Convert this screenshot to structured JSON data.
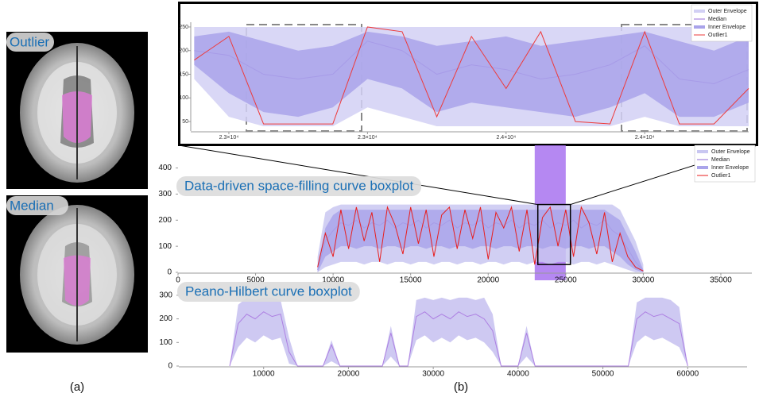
{
  "left_panel": {
    "images": [
      {
        "label": "Outlier"
      },
      {
        "label": "Median"
      }
    ],
    "caption": "(a)"
  },
  "right_caption": "(b)",
  "chart_data": [
    {
      "type": "line",
      "legend": "upper right",
      "x": [
        22800,
        22900,
        23000,
        23100,
        23200,
        23300,
        23400,
        23500,
        23600,
        23700,
        23800,
        23900,
        24000,
        24100,
        24200,
        24300,
        24400
      ],
      "xlim": [
        22790,
        24400
      ],
      "xticks": [
        {
          "value": 22900,
          "label": "2.3×10⁴"
        },
        {
          "value": 23300,
          "label": "2.3×10⁴"
        },
        {
          "value": 23700,
          "label": "2.4×10⁴"
        },
        {
          "value": 24100,
          "label": "2.4×10⁴"
        }
      ],
      "ylim": [
        30,
        260
      ],
      "yticks": [
        50,
        100,
        150,
        200,
        250
      ],
      "series": [
        {
          "name": "Outer Envelope",
          "color": "#d2d0f4",
          "values": [
            250,
            250,
            250,
            250,
            250,
            250,
            250,
            250,
            250,
            250,
            250,
            250,
            250,
            250,
            250,
            250,
            250
          ],
          "low": [
            140,
            60,
            40,
            40,
            40,
            80,
            60,
            40,
            40,
            40,
            40,
            40,
            40,
            60,
            40,
            40,
            40
          ]
        },
        {
          "name": "Median",
          "color": "#9a6cd8",
          "values": [
            200,
            190,
            150,
            140,
            150,
            220,
            200,
            150,
            170,
            160,
            140,
            150,
            170,
            210,
            140,
            130,
            160
          ]
        },
        {
          "name": "Inner Envelope",
          "color": "#a9a3ea",
          "values": [
            230,
            240,
            220,
            200,
            210,
            240,
            230,
            210,
            220,
            230,
            210,
            220,
            230,
            240,
            220,
            200,
            230
          ],
          "low": [
            170,
            110,
            70,
            60,
            80,
            140,
            120,
            70,
            90,
            80,
            70,
            60,
            80,
            110,
            60,
            60,
            90
          ]
        },
        {
          "name": "Outlier1",
          "color": "#ee3a3a",
          "values": [
            180,
            230,
            45,
            45,
            45,
            250,
            240,
            60,
            230,
            120,
            240,
            50,
            45,
            240,
            45,
            45,
            120
          ]
        }
      ]
    },
    {
      "type": "line",
      "legend": "upper right",
      "title": "Data-driven space-filling curve boxplot",
      "highlight_x": [
        23000,
        25000
      ],
      "zoom_box": {
        "x": [
          23200,
          25300
        ],
        "y": [
          30,
          260
        ]
      },
      "x": [
        9000,
        9500,
        10000,
        10500,
        11000,
        11500,
        12000,
        12500,
        13000,
        13500,
        14000,
        14500,
        15000,
        15500,
        16000,
        16500,
        17000,
        17500,
        18000,
        18500,
        19000,
        19500,
        20000,
        20500,
        21000,
        21500,
        22000,
        22500,
        23000,
        23500,
        24000,
        24500,
        25000,
        25500,
        26000,
        26500,
        27000,
        27500,
        28000,
        28500,
        29000,
        29500,
        30000
      ],
      "xlim": [
        0,
        37000
      ],
      "xticks": [
        0,
        5000,
        10000,
        15000,
        20000,
        25000,
        30000,
        35000
      ],
      "ylim": [
        0,
        420
      ],
      "yticks": [
        0,
        100,
        200,
        300,
        400
      ],
      "series": [
        {
          "name": "Outer Envelope",
          "color": "#c9c7f1",
          "values": [
            60,
            230,
            250,
            260,
            260,
            260,
            260,
            260,
            260,
            260,
            260,
            260,
            260,
            260,
            260,
            260,
            260,
            260,
            260,
            260,
            260,
            260,
            260,
            260,
            260,
            260,
            260,
            260,
            260,
            260,
            260,
            260,
            260,
            260,
            260,
            260,
            260,
            260,
            260,
            240,
            180,
            120,
            30
          ],
          "low": [
            0,
            20,
            30,
            40,
            40,
            40,
            30,
            40,
            40,
            30,
            40,
            40,
            30,
            40,
            40,
            30,
            40,
            40,
            30,
            40,
            40,
            30,
            40,
            40,
            30,
            40,
            40,
            30,
            40,
            40,
            30,
            40,
            40,
            30,
            40,
            40,
            30,
            40,
            30,
            20,
            10,
            0,
            0
          ]
        },
        {
          "name": "Median",
          "color": "#8e6ad6",
          "values": [
            10,
            120,
            160,
            190,
            180,
            200,
            170,
            190,
            180,
            200,
            170,
            190,
            180,
            200,
            170,
            190,
            180,
            200,
            170,
            190,
            180,
            200,
            170,
            190,
            180,
            200,
            170,
            190,
            180,
            200,
            170,
            190,
            180,
            200,
            170,
            190,
            180,
            200,
            160,
            140,
            90,
            40,
            5
          ]
        },
        {
          "name": "Inner Envelope",
          "color": "#aaa4ea",
          "values": [
            30,
            170,
            220,
            240,
            240,
            240,
            240,
            240,
            240,
            240,
            240,
            240,
            240,
            240,
            240,
            240,
            240,
            240,
            240,
            240,
            240,
            240,
            240,
            240,
            240,
            240,
            240,
            240,
            240,
            240,
            240,
            240,
            240,
            240,
            240,
            240,
            240,
            240,
            220,
            200,
            140,
            80,
            10
          ],
          "low": [
            0,
            60,
            80,
            100,
            100,
            90,
            100,
            100,
            90,
            100,
            100,
            90,
            100,
            100,
            90,
            100,
            100,
            90,
            100,
            100,
            90,
            100,
            100,
            90,
            100,
            100,
            90,
            100,
            100,
            90,
            100,
            100,
            90,
            100,
            100,
            90,
            100,
            100,
            80,
            60,
            30,
            10,
            0
          ]
        },
        {
          "name": "Outlier1",
          "color": "#e81e1e",
          "values": [
            20,
            150,
            60,
            240,
            90,
            250,
            120,
            230,
            40,
            250,
            180,
            70,
            250,
            110,
            240,
            60,
            220,
            250,
            90,
            240,
            130,
            250,
            50,
            230,
            170,
            250,
            80,
            240,
            30,
            210,
            250,
            100,
            240,
            60,
            250,
            190,
            70,
            230,
            40,
            150,
            60,
            20,
            5
          ]
        }
      ]
    },
    {
      "type": "line",
      "title": "Peano-Hilbert curve boxplot",
      "x": [
        6000,
        7000,
        8000,
        9000,
        10000,
        11000,
        12000,
        13000,
        14000,
        15000,
        16000,
        17000,
        18000,
        19000,
        20000,
        21000,
        22000,
        23000,
        24000,
        25000,
        26000,
        27000,
        28000,
        29000,
        30000,
        31000,
        32000,
        33000,
        34000,
        35000,
        36000,
        37000,
        38000,
        39000,
        40000,
        41000,
        42000,
        43000,
        44000,
        45000,
        46000,
        47000,
        48000,
        49000,
        50000,
        51000,
        52000,
        53000,
        54000,
        55000,
        56000,
        57000,
        58000,
        59000,
        60000
      ],
      "xlim": [
        0,
        67000
      ],
      "xticks": [
        10000,
        20000,
        30000,
        40000,
        50000,
        60000
      ],
      "ylim": [
        0,
        330
      ],
      "yticks": [
        0,
        100,
        200,
        300
      ],
      "series": [
        {
          "name": "Outer Envelope",
          "color": "#c6bff0",
          "values": [
            0,
            260,
            290,
            280,
            290,
            290,
            280,
            120,
            0,
            0,
            0,
            0,
            110,
            0,
            0,
            0,
            0,
            0,
            0,
            170,
            0,
            0,
            280,
            290,
            280,
            290,
            280,
            290,
            290,
            280,
            290,
            220,
            0,
            0,
            0,
            170,
            0,
            0,
            0,
            0,
            0,
            0,
            0,
            0,
            0,
            0,
            0,
            0,
            270,
            290,
            290,
            290,
            280,
            250,
            0
          ],
          "low": [
            0,
            80,
            120,
            100,
            130,
            110,
            120,
            10,
            0,
            0,
            0,
            0,
            20,
            0,
            0,
            0,
            0,
            0,
            0,
            40,
            0,
            0,
            110,
            130,
            100,
            120,
            100,
            130,
            110,
            120,
            100,
            60,
            0,
            0,
            0,
            40,
            0,
            0,
            0,
            0,
            0,
            0,
            0,
            0,
            0,
            0,
            0,
            0,
            100,
            130,
            110,
            120,
            100,
            80,
            0
          ]
        },
        {
          "name": "Median",
          "color": "#ad7fe2",
          "values": [
            0,
            180,
            220,
            200,
            230,
            210,
            220,
            60,
            0,
            0,
            0,
            0,
            90,
            0,
            0,
            0,
            0,
            0,
            0,
            140,
            0,
            0,
            210,
            230,
            200,
            220,
            200,
            230,
            210,
            220,
            200,
            150,
            0,
            0,
            0,
            140,
            0,
            0,
            0,
            0,
            0,
            0,
            0,
            0,
            0,
            0,
            0,
            0,
            200,
            230,
            210,
            220,
            200,
            180,
            0
          ]
        }
      ]
    }
  ]
}
